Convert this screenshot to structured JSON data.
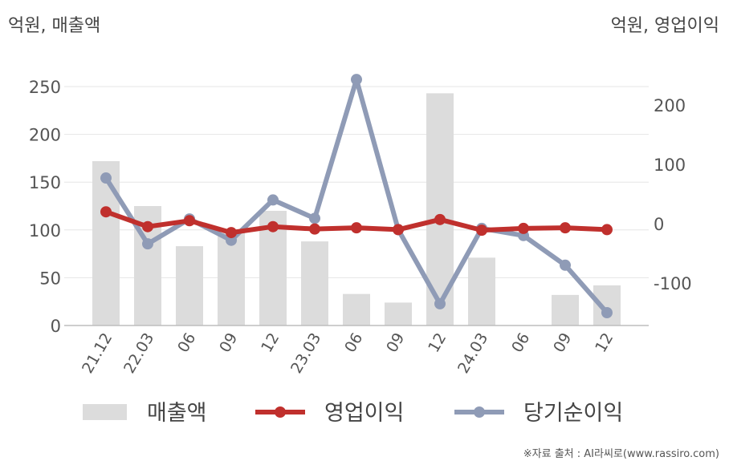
{
  "left_unit": "억원, 매출액",
  "right_unit": "억원, 영업이익",
  "source": "※자료 출처 : AI라씨로(www.rassiro.com)",
  "chart_data": {
    "type": "bar+line",
    "categories": [
      "21.12",
      "22.03",
      "06",
      "09",
      "12",
      "23.03",
      "06",
      "09",
      "12",
      "24.03",
      "06",
      "09",
      "12"
    ],
    "series": [
      {
        "name": "매출액",
        "type": "bar",
        "axis": "left",
        "color": "#dcdcdc",
        "values": [
          172,
          125,
          83,
          97,
          120,
          88,
          33,
          24,
          243,
          71,
          0,
          32,
          42
        ]
      },
      {
        "name": "영업이익",
        "type": "line",
        "axis": "right",
        "color": "#c0302d",
        "values": [
          20,
          -5,
          5,
          -15,
          -5,
          -9,
          -7,
          -10,
          7,
          -11,
          -8,
          -7,
          -10
        ]
      },
      {
        "name": "당기순이익",
        "type": "line",
        "axis": "right",
        "color": "#8f9bb6",
        "values": [
          77,
          -34,
          8,
          -28,
          40,
          9,
          243,
          -10,
          -135,
          -8,
          -20,
          -70,
          -150
        ]
      }
    ],
    "left_axis": {
      "ylim": [
        0,
        250
      ],
      "ticks": [
        0,
        50,
        100,
        150,
        200,
        250
      ]
    },
    "right_axis": {
      "ylim": [
        -175,
        237
      ],
      "ticks": [
        -100,
        0,
        100,
        200
      ],
      "tick_labels": [
        "-100",
        "0",
        "100",
        "200"
      ]
    },
    "grid": true,
    "legend_position": "bottom"
  }
}
